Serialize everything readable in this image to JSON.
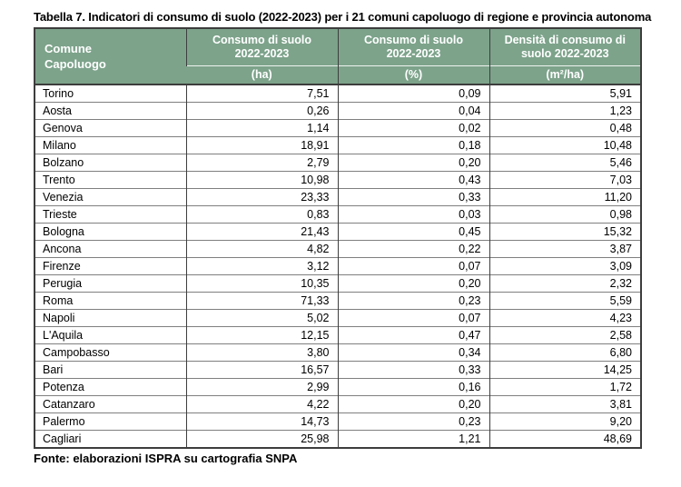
{
  "page": {
    "title": "Tabella 7. Indicatori di consumo di suolo (2022-2023) per i 21 comuni capoluogo di regione e provincia autonoma",
    "source_note": "Fonte: elaborazioni ISPRA su cartografia SNPA"
  },
  "colors": {
    "header_bg": "#7da38b",
    "header_text": "#ffffff",
    "outer_border": "#3d3d3d",
    "row_divider": "#7f7f7f"
  },
  "table": {
    "columns": [
      {
        "label_line1": "Comune",
        "label_line2": "Capoluogo",
        "unit": ""
      },
      {
        "label_line1": "Consumo di suolo",
        "label_line2": "2022-2023",
        "unit": "(ha)"
      },
      {
        "label_line1": "Consumo di suolo",
        "label_line2": "2022-2023",
        "unit": "(%)"
      },
      {
        "label_line1": "Densità di consumo di",
        "label_line2": "suolo 2022-2023",
        "unit": "(m²/ha)"
      }
    ],
    "rows": [
      {
        "comune": "Torino",
        "consumo_ha": "7,51",
        "consumo_pct": "0,09",
        "densita": "5,91"
      },
      {
        "comune": "Aosta",
        "consumo_ha": "0,26",
        "consumo_pct": "0,04",
        "densita": "1,23"
      },
      {
        "comune": "Genova",
        "consumo_ha": "1,14",
        "consumo_pct": "0,02",
        "densita": "0,48"
      },
      {
        "comune": "Milano",
        "consumo_ha": "18,91",
        "consumo_pct": "0,18",
        "densita": "10,48"
      },
      {
        "comune": "Bolzano",
        "consumo_ha": "2,79",
        "consumo_pct": "0,20",
        "densita": "5,46"
      },
      {
        "comune": "Trento",
        "consumo_ha": "10,98",
        "consumo_pct": "0,43",
        "densita": "7,03"
      },
      {
        "comune": "Venezia",
        "consumo_ha": "23,33",
        "consumo_pct": "0,33",
        "densita": "11,20"
      },
      {
        "comune": "Trieste",
        "consumo_ha": "0,83",
        "consumo_pct": "0,03",
        "densita": "0,98"
      },
      {
        "comune": "Bologna",
        "consumo_ha": "21,43",
        "consumo_pct": "0,45",
        "densita": "15,32"
      },
      {
        "comune": "Ancona",
        "consumo_ha": "4,82",
        "consumo_pct": "0,22",
        "densita": "3,87"
      },
      {
        "comune": "Firenze",
        "consumo_ha": "3,12",
        "consumo_pct": "0,07",
        "densita": "3,09"
      },
      {
        "comune": "Perugia",
        "consumo_ha": "10,35",
        "consumo_pct": "0,20",
        "densita": "2,32"
      },
      {
        "comune": "Roma",
        "consumo_ha": "71,33",
        "consumo_pct": "0,23",
        "densita": "5,59"
      },
      {
        "comune": "Napoli",
        "consumo_ha": "5,02",
        "consumo_pct": "0,07",
        "densita": "4,23"
      },
      {
        "comune": "L'Aquila",
        "consumo_ha": "12,15",
        "consumo_pct": "0,47",
        "densita": "2,58"
      },
      {
        "comune": "Campobasso",
        "consumo_ha": "3,80",
        "consumo_pct": "0,34",
        "densita": "6,80"
      },
      {
        "comune": "Bari",
        "consumo_ha": "16,57",
        "consumo_pct": "0,33",
        "densita": "14,25"
      },
      {
        "comune": "Potenza",
        "consumo_ha": "2,99",
        "consumo_pct": "0,16",
        "densita": "1,72"
      },
      {
        "comune": "Catanzaro",
        "consumo_ha": "4,22",
        "consumo_pct": "0,20",
        "densita": "3,81"
      },
      {
        "comune": "Palermo",
        "consumo_ha": "14,73",
        "consumo_pct": "0,23",
        "densita": "9,20"
      },
      {
        "comune": "Cagliari",
        "consumo_ha": "25,98",
        "consumo_pct": "1,21",
        "densita": "48,69"
      }
    ]
  },
  "chart_data": {
    "type": "table",
    "title": "Tabella 7. Indicatori di consumo di suolo (2022-2023) per i 21 comuni capoluogo di regione e provincia autonoma",
    "columns": [
      "Comune Capoluogo",
      "Consumo di suolo 2022-2023 (ha)",
      "Consumo di suolo 2022-2023 (%)",
      "Densità di consumo di suolo 2022-2023 (m²/ha)"
    ],
    "categories": [
      "Torino",
      "Aosta",
      "Genova",
      "Milano",
      "Bolzano",
      "Trento",
      "Venezia",
      "Trieste",
      "Bologna",
      "Ancona",
      "Firenze",
      "Perugia",
      "Roma",
      "Napoli",
      "L'Aquila",
      "Campobasso",
      "Bari",
      "Potenza",
      "Catanzaro",
      "Palermo",
      "Cagliari"
    ],
    "series": [
      {
        "name": "Consumo di suolo 2022-2023 (ha)",
        "values": [
          7.51,
          0.26,
          1.14,
          18.91,
          2.79,
          10.98,
          23.33,
          0.83,
          21.43,
          4.82,
          3.12,
          10.35,
          71.33,
          5.02,
          12.15,
          3.8,
          16.57,
          2.99,
          4.22,
          14.73,
          25.98
        ]
      },
      {
        "name": "Consumo di suolo 2022-2023 (%)",
        "values": [
          0.09,
          0.04,
          0.02,
          0.18,
          0.2,
          0.43,
          0.33,
          0.03,
          0.45,
          0.22,
          0.07,
          0.2,
          0.23,
          0.07,
          0.47,
          0.34,
          0.33,
          0.16,
          0.2,
          0.23,
          1.21
        ]
      },
      {
        "name": "Densità di consumo di suolo 2022-2023 (m²/ha)",
        "values": [
          5.91,
          1.23,
          0.48,
          10.48,
          5.46,
          7.03,
          11.2,
          0.98,
          15.32,
          3.87,
          3.09,
          2.32,
          5.59,
          4.23,
          2.58,
          6.8,
          14.25,
          1.72,
          3.81,
          9.2,
          48.69
        ]
      }
    ]
  }
}
